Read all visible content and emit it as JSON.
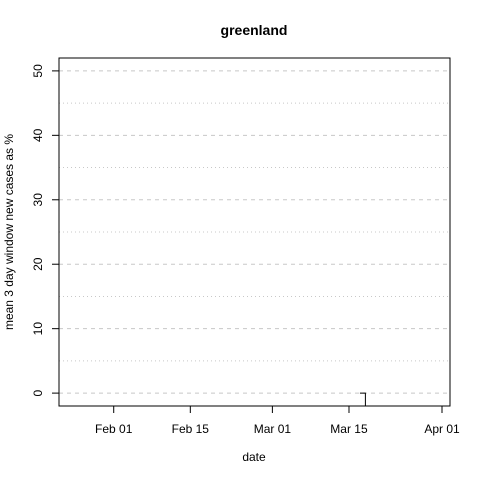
{
  "chart_data": {
    "type": "line",
    "title": "greenland",
    "xlabel": "date",
    "ylabel": "mean  3  day window new cases as %",
    "x_ticks": [
      "Feb 01",
      "Feb 15",
      "Mar 01",
      "Mar 15",
      "Apr 01"
    ],
    "x_tick_dates": [
      "2020-02-01",
      "2020-02-15",
      "2020-03-01",
      "2020-03-15",
      "2020-04-01"
    ],
    "xlim": [
      "2020-01-22",
      "2020-04-01"
    ],
    "y_ticks": [
      "0",
      "10",
      "20",
      "30",
      "40",
      "50"
    ],
    "y_tick_values": [
      0,
      10,
      20,
      30,
      40,
      50
    ],
    "ylim": [
      -2,
      52
    ],
    "grid": {
      "major_y": [
        0,
        10,
        20,
        30,
        40,
        50
      ],
      "minor_y": [
        5,
        15,
        25,
        35,
        45
      ]
    },
    "series": [
      {
        "color": "#000000",
        "step": true,
        "points": [
          {
            "x": "2020-03-17",
            "y": 0
          },
          {
            "x": "2020-03-18",
            "y": -2
          }
        ]
      }
    ]
  }
}
